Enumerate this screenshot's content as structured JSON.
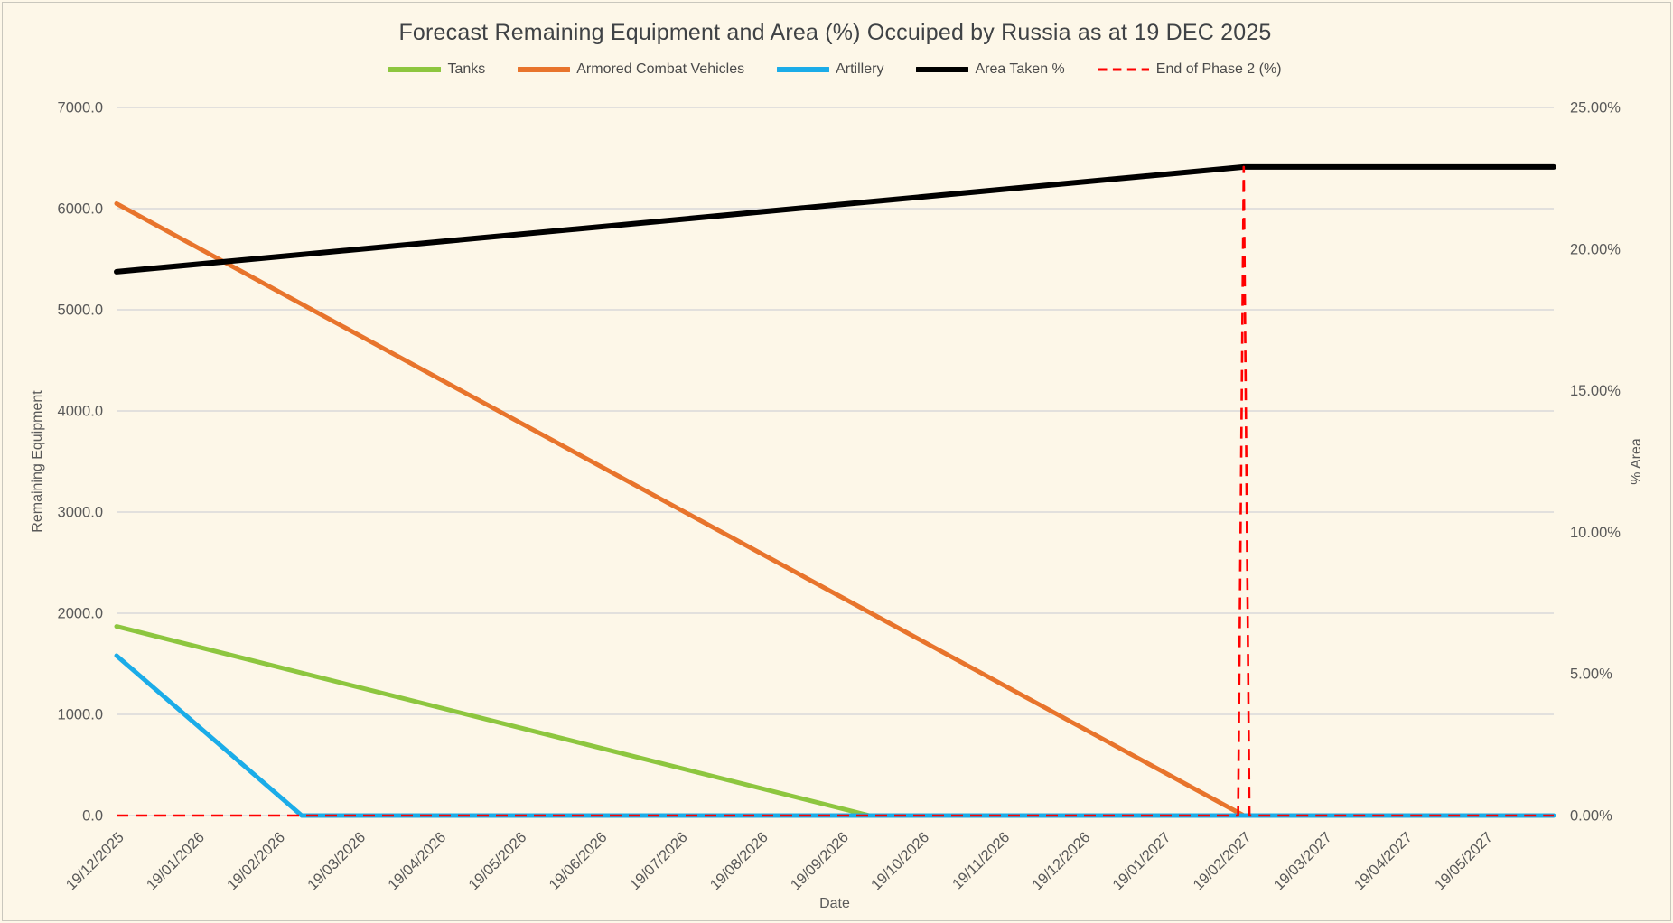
{
  "chart_data": {
    "type": "line",
    "title": "Forecast Remaining Equipment and Area (%) Occuiped by Russia as at 19 DEC 2025",
    "background_color": "#FDF7E8",
    "gridline_color": "#D9D9D9",
    "text_color": "#595959",
    "grid": "horizontal-only",
    "legend_position": "top-center",
    "x_axis": {
      "title": "Date",
      "labels": [
        "19/12/2025",
        "19/01/2026",
        "19/02/2026",
        "19/03/2026",
        "19/04/2026",
        "19/05/2026",
        "19/06/2026",
        "19/07/2026",
        "19/08/2026",
        "19/09/2026",
        "19/10/2026",
        "19/11/2026",
        "19/12/2026",
        "19/01/2027",
        "19/02/2027",
        "19/03/2027",
        "19/04/2027",
        "19/05/2027"
      ],
      "label_rotation_deg": -45,
      "domain_months": [
        0,
        17.85
      ]
    },
    "left_axis": {
      "title": "Remaining Equipment",
      "min": 0,
      "max": 7000,
      "tick_step": 1000,
      "tick_labels": [
        "0.0",
        "1000.0",
        "2000.0",
        "3000.0",
        "4000.0",
        "5000.0",
        "6000.0",
        "7000.0"
      ]
    },
    "right_axis": {
      "title": "% Area",
      "min": 0,
      "max": 25,
      "tick_step": 5,
      "tick_labels": [
        "0.00%",
        "5.00%",
        "10.00%",
        "15.00%",
        "20.00%",
        "25.00%"
      ]
    },
    "series": [
      {
        "name": "Tanks",
        "slug": "tanks",
        "axis": "left",
        "color": "#8DC63F",
        "style": "solid",
        "points_month_value": [
          [
            0,
            1870
          ],
          [
            9.35,
            0
          ]
        ],
        "note": "declines ~200 per month from 1870, reaching 0 just after 19/09/2026"
      },
      {
        "name": "Armored Combat Vehicles",
        "slug": "armored-combat-vehicles",
        "axis": "left",
        "color": "#E8742C",
        "style": "solid",
        "points_month_value": [
          [
            0,
            6050
          ],
          [
            14,
            0
          ]
        ],
        "note": "declines ~432 per month from 6050, reaching 0 at 19/02/2027"
      },
      {
        "name": "Artillery",
        "slug": "artillery",
        "axis": "left",
        "color": "#1BACE8",
        "style": "solid",
        "points_month_value": [
          [
            0,
            1580
          ],
          [
            2.3,
            0
          ],
          [
            17.85,
            0
          ]
        ],
        "note": "declines ~685 per month from 1580, reaching 0 just after 19/02/2026, then flat at 0"
      },
      {
        "name": "Area Taken %",
        "slug": "area-taken-pct",
        "axis": "right",
        "color": "#000000",
        "style": "solid",
        "points_month_value": [
          [
            0,
            19.2
          ],
          [
            14,
            22.9
          ],
          [
            17.85,
            22.9
          ]
        ],
        "note": "rises linearly 19.2% to 22.9% by 19/02/2027, then flat"
      },
      {
        "name": "End of Phase 2 (%)",
        "slug": "end-of-phase-2",
        "axis": "right",
        "color": "#FF0000",
        "style": "dashed",
        "points_month_value": [
          [
            0,
            0
          ],
          [
            13.93,
            0
          ],
          [
            14,
            22.9
          ],
          [
            14.07,
            0
          ],
          [
            17.85,
            0
          ]
        ],
        "note": "dashed marker at 0% with vertical spike up to the Area Taken line at 19/02/2027"
      }
    ]
  }
}
